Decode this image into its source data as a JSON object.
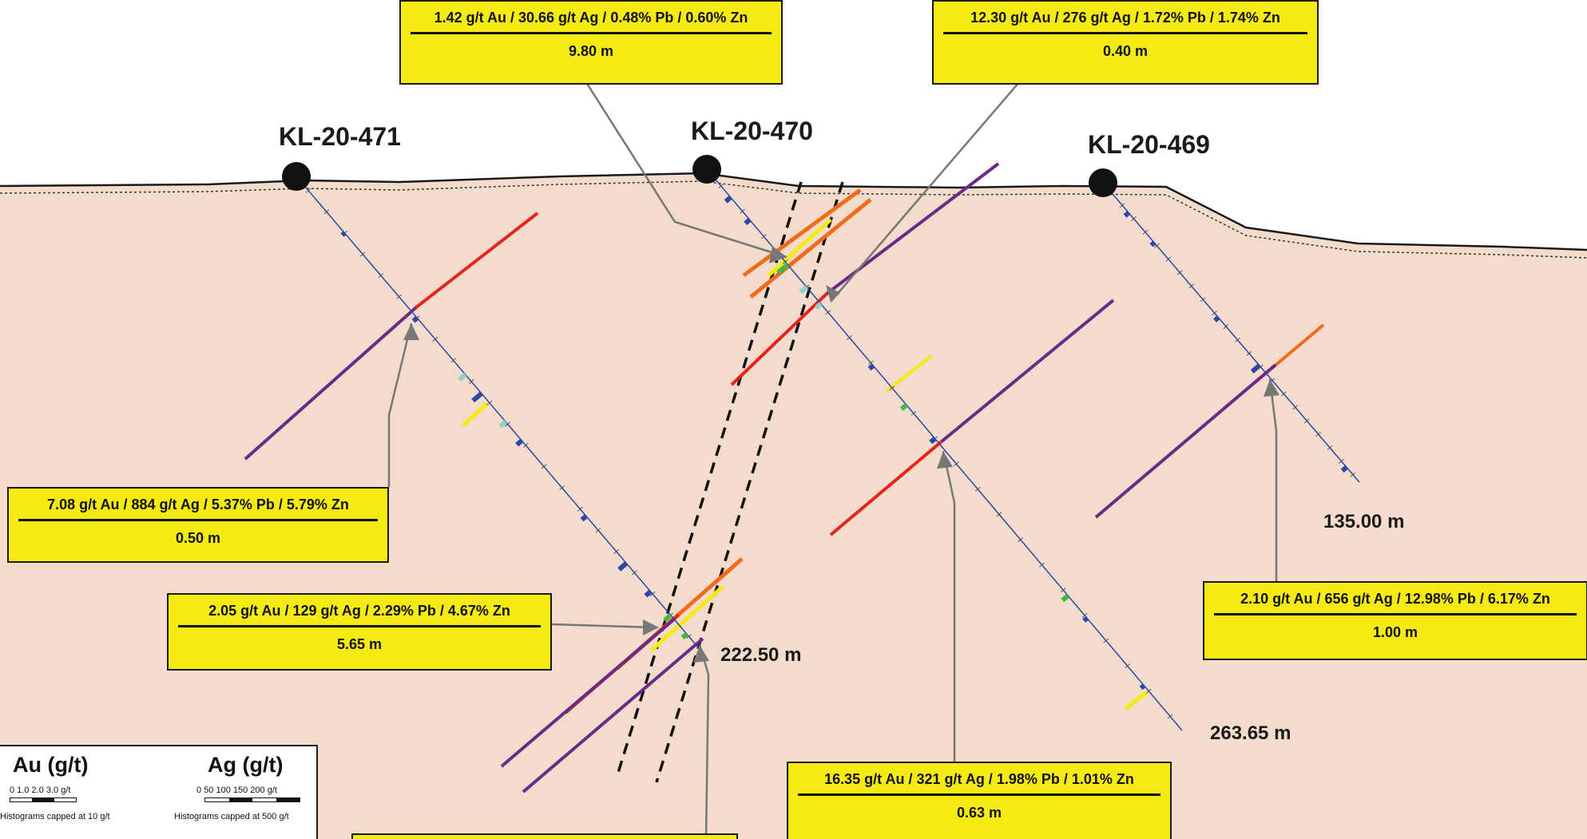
{
  "holes": [
    {
      "name": "KL-20-471"
    },
    {
      "name": "KL-20-470"
    },
    {
      "name": "KL-20-469"
    }
  ],
  "callouts": [
    {
      "grade": "1.42 g/t Au / 30.66 g/t Ag / 0.48% Pb / 0.60% Zn",
      "length": "9.80 m"
    },
    {
      "grade": "12.30 g/t Au / 276 g/t Ag / 1.72% Pb / 1.74% Zn",
      "length": "0.40 m"
    },
    {
      "grade": "7.08 g/t Au / 884 g/t Ag / 5.37% Pb / 5.79% Zn",
      "length": "0.50 m"
    },
    {
      "grade": "2.05 g/t Au / 129 g/t Ag / 2.29% Pb / 4.67% Zn",
      "length": "5.65 m"
    },
    {
      "grade": "2.10 g/t Au / 656 g/t Ag / 12.98% Pb / 6.17% Zn",
      "length": "1.00 m"
    },
    {
      "grade": "16.35 g/t Au / 321 g/t Ag / 1.98% Pb / 1.01% Zn",
      "length": "0.63 m"
    }
  ],
  "end_depths": {
    "hole_469": "135.00 m",
    "hole_470": "263.65 m",
    "hole_471": "222.50 m"
  },
  "legend": {
    "au_title": "Au (g/t)",
    "au_scale": "0    1.0  2.0  3.0 g/t",
    "au_cap": "Histograms capped at 10 g/t",
    "ag_title": "Ag (g/t)",
    "ag_scale": "0    50  100  150  200 g/t",
    "ag_cap": "Histograms capped at 500 g/t"
  },
  "colors": {
    "background": "#f3dccb",
    "callout_fill": "#f5ea14",
    "hole_trace": "#2b47a8",
    "leader": "#7f7f7f",
    "vein_red": "#e8231e",
    "vein_orange": "#f26b1d",
    "vein_purple": "#6a2a87",
    "vein_yellow": "#f5ea14",
    "assay_green": "#45b649",
    "assay_teal": "#8fd3c6",
    "fault": "#1a1a1a"
  }
}
